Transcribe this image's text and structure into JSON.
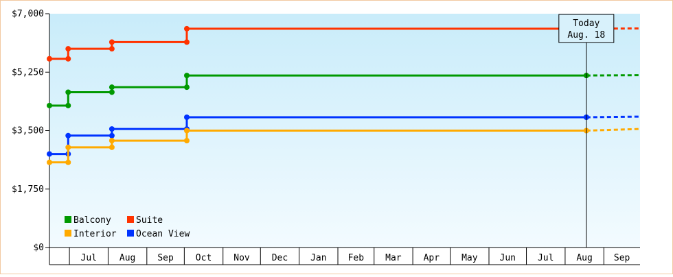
{
  "chart_data": {
    "type": "line",
    "step": true,
    "y_ticks": [
      {
        "value": 0,
        "label": "$0"
      },
      {
        "value": 1750,
        "label": "$1,750"
      },
      {
        "value": 3500,
        "label": "$3,500"
      },
      {
        "value": 5250,
        "label": "$5,250"
      },
      {
        "value": 7000,
        "label": "$7,000"
      }
    ],
    "ylim": [
      0,
      7000
    ],
    "month_labels": [
      "Jul",
      "Aug",
      "Sep",
      "Oct",
      "Nov",
      "Dec",
      "Jan",
      "Feb",
      "Mar",
      "Apr",
      "May",
      "Jun",
      "Jul",
      "Aug",
      "Sep"
    ],
    "x_start": "2019-06-15",
    "x_end": "2020-09-30",
    "today": {
      "line1": "Today",
      "line2": "Aug. 18",
      "date": "2020-08-18"
    },
    "legend_position": "bottom-left",
    "series": [
      {
        "name": "Suite",
        "color": "#ff3300",
        "change_dates": [
          "2019-06-15",
          "2019-06-30",
          "2019-08-04",
          "2019-10-03"
        ],
        "values": [
          5650,
          5950,
          6150,
          6550
        ],
        "projection_end": "2020-09-30",
        "projection_value": 6560
      },
      {
        "name": "Balcony",
        "color": "#009900",
        "change_dates": [
          "2019-06-15",
          "2019-06-30",
          "2019-08-04",
          "2019-10-03"
        ],
        "values": [
          4250,
          4650,
          4800,
          5150
        ],
        "projection_end": "2020-09-30",
        "projection_value": 5160
      },
      {
        "name": "Ocean View",
        "color": "#0033ff",
        "change_dates": [
          "2019-06-15",
          "2019-06-30",
          "2019-08-04",
          "2019-10-03"
        ],
        "values": [
          2800,
          3350,
          3550,
          3900
        ],
        "projection_end": "2020-09-30",
        "projection_value": 3920
      },
      {
        "name": "Interior",
        "color": "#ffaa00",
        "change_dates": [
          "2019-06-15",
          "2019-06-30",
          "2019-08-04",
          "2019-10-03"
        ],
        "values": [
          2550,
          3000,
          3200,
          3500
        ],
        "projection_end": "2020-09-30",
        "projection_value": 3550
      }
    ]
  },
  "legend": [
    {
      "name": "Balcony",
      "color": "#009900"
    },
    {
      "name": "Suite",
      "color": "#ff3300"
    },
    {
      "name": "Interior",
      "color": "#ffaa00"
    },
    {
      "name": "Ocean View",
      "color": "#0033ff"
    }
  ],
  "colors": {
    "plot_bg_top": "#c9ecfa",
    "plot_bg_bottom": "#f3fbff",
    "frame_border": "#f2c8a0"
  }
}
